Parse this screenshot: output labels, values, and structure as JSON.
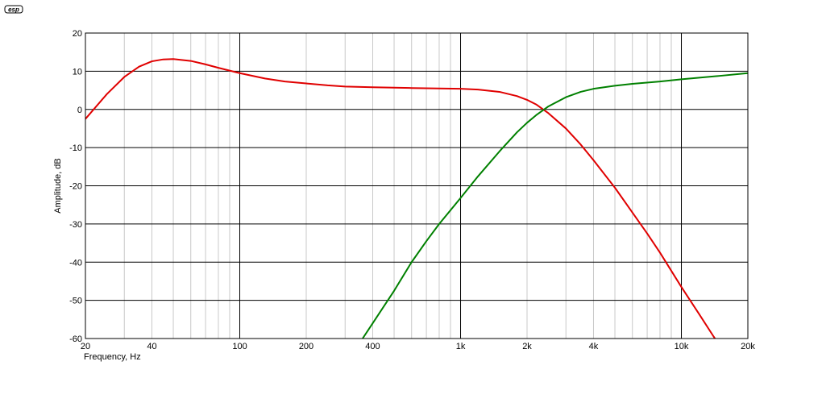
{
  "logo": {
    "text": "esp"
  },
  "colors": {
    "background": "#ffffff",
    "grid_major": "#000000",
    "grid_minor": "#c8c8c8",
    "red_series": "#e00000",
    "green_series": "#008000"
  },
  "chart_data": {
    "type": "line",
    "title": "",
    "xlabel": "Frequency, Hz",
    "ylabel": "Amplitude, dB",
    "x_scale": "log",
    "xlim": [
      20,
      20000
    ],
    "ylim": [
      -60,
      20
    ],
    "grid": true,
    "legend": "none",
    "x_ticks": [
      20,
      40,
      100,
      200,
      400,
      1000,
      2000,
      4000,
      10000,
      20000
    ],
    "x_tick_labels": [
      "20",
      "40",
      "100",
      "200",
      "400",
      "1k",
      "2k",
      "4k",
      "10k",
      "20k"
    ],
    "y_ticks": [
      20,
      10,
      0,
      -10,
      -20,
      -30,
      -40,
      -50,
      -60
    ],
    "y_tick_labels": [
      "20",
      "10",
      "0",
      "-10",
      "-20",
      "-30",
      "-40",
      "-50",
      "-60"
    ],
    "series": [
      {
        "color": "#e00000",
        "x": [
          20,
          25,
          30,
          35,
          40,
          45,
          50,
          60,
          70,
          80,
          100,
          130,
          160,
          200,
          250,
          300,
          400,
          500,
          600,
          800,
          1000,
          1200,
          1500,
          1800,
          2000,
          2200,
          2500,
          3000,
          3500,
          4000,
          5000,
          6000,
          7000,
          8000,
          10000,
          12000,
          14000,
          15000
        ],
        "y": [
          -2.5,
          4,
          8.5,
          11.2,
          12.6,
          13.1,
          13.2,
          12.7,
          11.8,
          10.9,
          9.5,
          8.1,
          7.3,
          6.8,
          6.3,
          6.0,
          5.8,
          5.7,
          5.6,
          5.5,
          5.4,
          5.2,
          4.6,
          3.5,
          2.5,
          1.3,
          -1.0,
          -5.0,
          -9.2,
          -13.3,
          -20.5,
          -27.0,
          -32.5,
          -37.5,
          -46.5,
          -53.5,
          -59.5,
          -62.0
        ]
      },
      {
        "color": "#008000",
        "x": [
          360,
          400,
          500,
          600,
          700,
          800,
          1000,
          1200,
          1500,
          1800,
          2000,
          2200,
          2500,
          3000,
          3500,
          4000,
          5000,
          6000,
          8000,
          10000,
          15000,
          20000
        ],
        "y": [
          -60.0,
          -56.0,
          -47.5,
          -40.0,
          -34.5,
          -30.0,
          -23.2,
          -17.5,
          -11.0,
          -6.0,
          -3.5,
          -1.5,
          0.8,
          3.2,
          4.6,
          5.4,
          6.2,
          6.7,
          7.3,
          7.9,
          8.8,
          9.5
        ]
      }
    ]
  }
}
